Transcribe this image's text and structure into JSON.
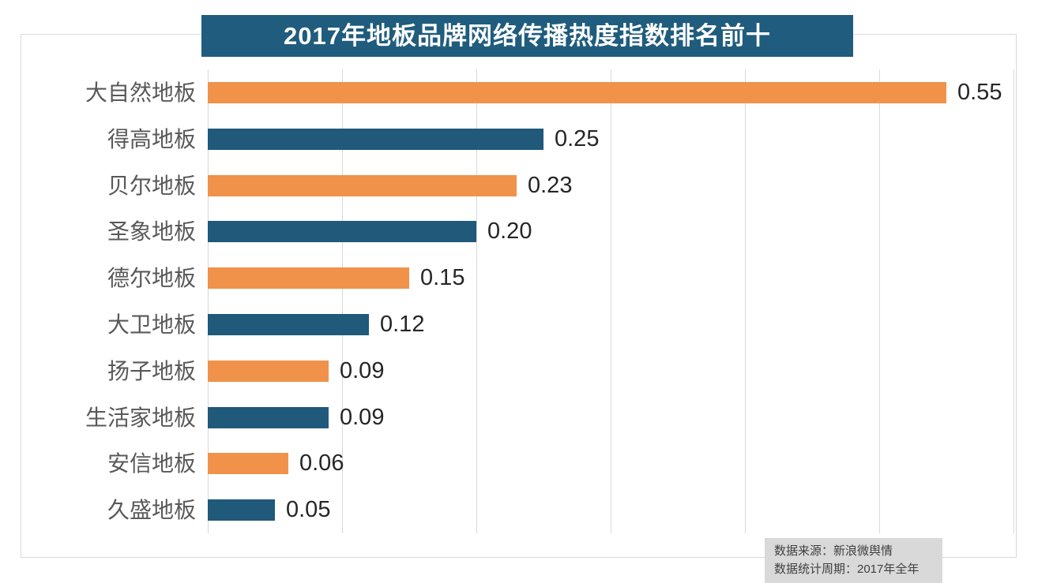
{
  "title": "2017年地板品牌网络传播热度指数排名前十",
  "source": {
    "line1": "数据来源：新浪微舆情",
    "line2": "数据统计周期：2017年全年"
  },
  "colors": {
    "title_bg": "#1f5c7d",
    "title_text": "#ffffff",
    "bar_orange": "#f0924a",
    "bar_blue": "#20597a",
    "grid": "#d9d9d9",
    "frame_border": "#d9d9d9",
    "category_label": "#595959",
    "value_label": "#262626",
    "source_bg": "#d9d9d9",
    "source_text": "#404040"
  },
  "chart_data": {
    "type": "bar",
    "orientation": "horizontal",
    "title": "2017年地板品牌网络传播热度指数排名前十",
    "categories": [
      "大自然地板",
      "得高地板",
      "贝尔地板",
      "圣象地板",
      "德尔地板",
      "大卫地板",
      "扬子地板",
      "生活家地板",
      "安信地板",
      "久盛地板"
    ],
    "values": [
      0.55,
      0.25,
      0.23,
      0.2,
      0.15,
      0.12,
      0.09,
      0.09,
      0.06,
      0.05
    ],
    "value_labels": [
      "0.55",
      "0.25",
      "0.23",
      "0.20",
      "0.15",
      "0.12",
      "0.09",
      "0.09",
      "0.06",
      "0.05"
    ],
    "xlabel": "",
    "ylabel": "",
    "xlim": [
      0,
      0.6
    ],
    "grid_interval": 0.1,
    "grid": true,
    "legend": false,
    "color_pattern": [
      "orange",
      "blue"
    ]
  }
}
